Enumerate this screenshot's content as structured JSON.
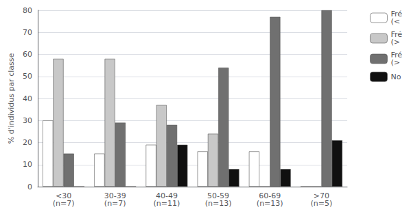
{
  "chart_data": {
    "type": "bar",
    "categories": [
      "<30\n(n=7)",
      "30-39\n(n=7)",
      "40-49\n(n=11)",
      "50-59\n(n=13)",
      "60-69\n(n=13)",
      ">70\n(n=5)"
    ],
    "series": [
      {
        "name": "Fré\n(<",
        "color": "#ffffff",
        "values": [
          30,
          15,
          19,
          16,
          16,
          0
        ]
      },
      {
        "name": "Fré\n(>",
        "color": "#c8c8c8",
        "values": [
          58,
          58,
          37,
          24,
          0,
          0
        ]
      },
      {
        "name": "Fré\n(>",
        "color": "#707070",
        "values": [
          15,
          29,
          28,
          54,
          77,
          80
        ]
      },
      {
        "name": "No",
        "color": "#101010",
        "values": [
          0,
          0,
          19,
          8,
          8,
          21
        ]
      }
    ],
    "ylabel": "% d'individus par classe",
    "ylim": [
      0,
      80
    ],
    "yticks": [
      0,
      10,
      20,
      30,
      40,
      50,
      60,
      70,
      80
    ],
    "grid": true,
    "legend": "right"
  }
}
